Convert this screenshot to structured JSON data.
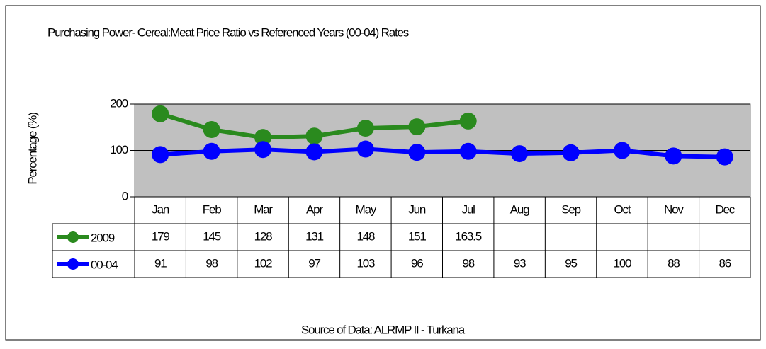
{
  "chart_data": {
    "type": "line",
    "title": "Purchasing Power- Cereal:Meat Price Ratio vs Referenced Years (00-04) Rates",
    "y_label": "Percentage (%)",
    "source": "Source of Data: ALRMP II - Turkana",
    "categories": [
      "Jan",
      "Feb",
      "Mar",
      "Apr",
      "May",
      "Jun",
      "Jul",
      "Aug",
      "Sep",
      "Oct",
      "Nov",
      "Dec"
    ],
    "series": [
      {
        "name": "2009",
        "color": "#2a8a1e",
        "values": [
          179,
          145,
          128,
          131,
          148,
          151,
          163.5,
          null,
          null,
          null,
          null,
          null
        ]
      },
      {
        "name": "00-04",
        "color": "#0000ff",
        "values": [
          91,
          98,
          102,
          97,
          103,
          96,
          98,
          93,
          95,
          100,
          88,
          86
        ]
      }
    ],
    "ylim": [
      0,
      200
    ],
    "yticks": [
      0,
      100,
      200
    ],
    "grid": true
  }
}
